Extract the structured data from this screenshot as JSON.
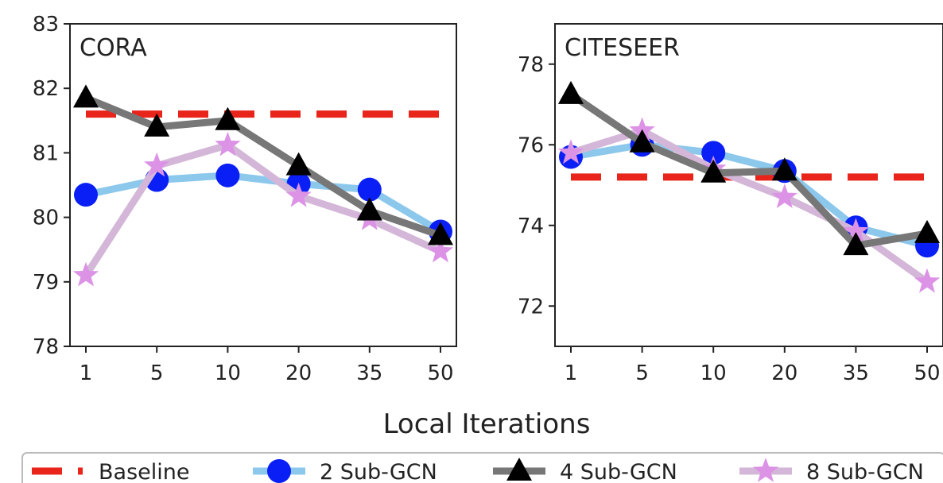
{
  "xlabel": "Local Iterations",
  "legend": {
    "placement": "bottom",
    "entries": [
      {
        "label": "Baseline",
        "color": "#e8241b",
        "marker": "none",
        "style": "dashed"
      },
      {
        "label": "2 Sub-GCN",
        "color": "#8cc8ec",
        "marker": "circle",
        "marker_color": "#0a1ff5"
      },
      {
        "label": "4 Sub-GCN",
        "color": "#777777",
        "marker": "triangle",
        "marker_color": "#000000"
      },
      {
        "label": "8 Sub-GCN",
        "color": "#d4b7d8",
        "marker": "star",
        "marker_color": "#dc93e6"
      }
    ]
  },
  "chart_data": [
    {
      "type": "line",
      "title": "CORA",
      "categories": [
        "1",
        "5",
        "10",
        "20",
        "35",
        "50"
      ],
      "ylim": [
        78,
        83
      ],
      "yticks": [
        78,
        79,
        80,
        81,
        82,
        83
      ],
      "grid": false,
      "baseline": 81.6,
      "series": [
        {
          "name": "2 Sub-GCN",
          "values": [
            80.35,
            80.58,
            80.65,
            80.52,
            80.43,
            79.78
          ]
        },
        {
          "name": "4 Sub-GCN",
          "values": [
            81.85,
            81.4,
            81.5,
            80.8,
            80.1,
            79.72
          ]
        },
        {
          "name": "8 Sub-GCN",
          "values": [
            79.1,
            80.8,
            81.12,
            80.33,
            79.97,
            79.47
          ]
        }
      ]
    },
    {
      "type": "line",
      "title": "CITESEER",
      "categories": [
        "1",
        "5",
        "10",
        "20",
        "35",
        "50"
      ],
      "ylim": [
        71,
        79
      ],
      "yticks": [
        72,
        74,
        76,
        78
      ],
      "grid": false,
      "baseline": 75.2,
      "series": [
        {
          "name": "2 Sub-GCN",
          "values": [
            75.7,
            76.0,
            75.8,
            75.35,
            73.95,
            73.5
          ]
        },
        {
          "name": "4 Sub-GCN",
          "values": [
            77.25,
            76.05,
            75.3,
            75.35,
            73.5,
            73.8
          ]
        },
        {
          "name": "8 Sub-GCN",
          "values": [
            75.8,
            76.35,
            75.4,
            74.7,
            73.85,
            72.6
          ]
        }
      ]
    }
  ]
}
